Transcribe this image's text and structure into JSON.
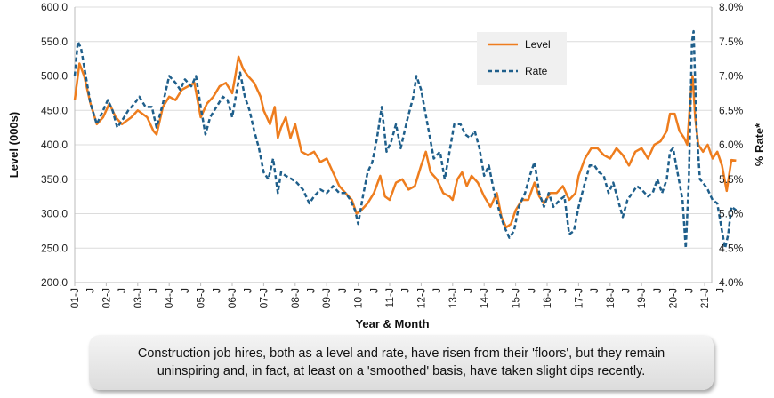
{
  "chart_data": {
    "type": "line",
    "xlabel": "Year & Month",
    "ylabel_left": "Level (000s)",
    "ylabel_right": "% Rate*",
    "ylim_left": [
      200,
      600
    ],
    "ylim_right": [
      4.0,
      8.0
    ],
    "yticks_left": [
      "200.0",
      "250.0",
      "300.0",
      "350.0",
      "400.0",
      "450.0",
      "500.0",
      "550.0",
      "600.0"
    ],
    "yticks_right": [
      "4.0%",
      "4.5%",
      "5.0%",
      "5.5%",
      "6.0%",
      "6.5%",
      "7.0%",
      "7.5%",
      "8.0%"
    ],
    "x_tick_labels": [
      "01-J",
      "02-J",
      "03-J",
      "04-J",
      "05-J",
      "06-J",
      "07-J",
      "08-J",
      "09-J",
      "10-J",
      "11-J",
      "12-J",
      "13-J",
      "14-J",
      "15-J",
      "16-J",
      "17-J",
      "18-J",
      "19-J",
      "20-J",
      "21-J"
    ],
    "x_tick_mid_label": "J",
    "x_start": 2001.0,
    "legend": {
      "position": "top-right",
      "entries": [
        "Level",
        "Rate"
      ]
    },
    "series": [
      {
        "name": "Level",
        "axis": "left",
        "color": "#ee7d1e",
        "style": "solid",
        "points": [
          [
            2001.0,
            465
          ],
          [
            2001.15,
            518
          ],
          [
            2001.3,
            500
          ],
          [
            2001.5,
            460
          ],
          [
            2001.7,
            430
          ],
          [
            2001.9,
            440
          ],
          [
            2002.1,
            460
          ],
          [
            2002.3,
            440
          ],
          [
            2002.5,
            430
          ],
          [
            2002.8,
            440
          ],
          [
            2003.0,
            450
          ],
          [
            2003.3,
            440
          ],
          [
            2003.5,
            420
          ],
          [
            2003.6,
            415
          ],
          [
            2003.8,
            455
          ],
          [
            2004.0,
            470
          ],
          [
            2004.2,
            465
          ],
          [
            2004.4,
            480
          ],
          [
            2004.6,
            485
          ],
          [
            2004.8,
            490
          ],
          [
            2005.0,
            440
          ],
          [
            2005.2,
            460
          ],
          [
            2005.4,
            470
          ],
          [
            2005.6,
            485
          ],
          [
            2005.8,
            490
          ],
          [
            2006.0,
            475
          ],
          [
            2006.1,
            500
          ],
          [
            2006.2,
            528
          ],
          [
            2006.35,
            510
          ],
          [
            2006.5,
            500
          ],
          [
            2006.7,
            490
          ],
          [
            2006.9,
            470
          ],
          [
            2007.0,
            450
          ],
          [
            2007.2,
            430
          ],
          [
            2007.35,
            455
          ],
          [
            2007.45,
            410
          ],
          [
            2007.55,
            425
          ],
          [
            2007.7,
            440
          ],
          [
            2007.85,
            410
          ],
          [
            2008.0,
            430
          ],
          [
            2008.2,
            390
          ],
          [
            2008.4,
            385
          ],
          [
            2008.6,
            390
          ],
          [
            2008.8,
            375
          ],
          [
            2009.0,
            380
          ],
          [
            2009.2,
            360
          ],
          [
            2009.4,
            340
          ],
          [
            2009.6,
            330
          ],
          [
            2009.8,
            320
          ],
          [
            2009.95,
            300
          ],
          [
            2010.1,
            305
          ],
          [
            2010.3,
            315
          ],
          [
            2010.5,
            330
          ],
          [
            2010.7,
            355
          ],
          [
            2010.85,
            325
          ],
          [
            2011.0,
            320
          ],
          [
            2011.2,
            345
          ],
          [
            2011.4,
            350
          ],
          [
            2011.6,
            335
          ],
          [
            2011.8,
            340
          ],
          [
            2012.0,
            370
          ],
          [
            2012.15,
            390
          ],
          [
            2012.3,
            360
          ],
          [
            2012.5,
            350
          ],
          [
            2012.7,
            330
          ],
          [
            2012.9,
            325
          ],
          [
            2013.0,
            320
          ],
          [
            2013.15,
            350
          ],
          [
            2013.3,
            360
          ],
          [
            2013.45,
            340
          ],
          [
            2013.6,
            355
          ],
          [
            2013.8,
            345
          ],
          [
            2014.0,
            325
          ],
          [
            2014.2,
            310
          ],
          [
            2014.4,
            330
          ],
          [
            2014.55,
            295
          ],
          [
            2014.7,
            280
          ],
          [
            2014.85,
            285
          ],
          [
            2015.0,
            305
          ],
          [
            2015.2,
            320
          ],
          [
            2015.4,
            320
          ],
          [
            2015.6,
            345
          ],
          [
            2015.75,
            325
          ],
          [
            2015.9,
            315
          ],
          [
            2016.1,
            330
          ],
          [
            2016.3,
            330
          ],
          [
            2016.5,
            340
          ],
          [
            2016.7,
            320
          ],
          [
            2016.9,
            330
          ],
          [
            2017.0,
            355
          ],
          [
            2017.2,
            380
          ],
          [
            2017.4,
            395
          ],
          [
            2017.6,
            395
          ],
          [
            2017.8,
            385
          ],
          [
            2018.0,
            380
          ],
          [
            2018.2,
            395
          ],
          [
            2018.4,
            385
          ],
          [
            2018.6,
            370
          ],
          [
            2018.8,
            390
          ],
          [
            2019.0,
            395
          ],
          [
            2019.2,
            380
          ],
          [
            2019.4,
            400
          ],
          [
            2019.6,
            405
          ],
          [
            2019.8,
            420
          ],
          [
            2019.9,
            445
          ],
          [
            2020.05,
            445
          ],
          [
            2020.2,
            420
          ],
          [
            2020.35,
            410
          ],
          [
            2020.45,
            400
          ],
          [
            2020.55,
            470
          ],
          [
            2020.62,
            500
          ],
          [
            2020.7,
            440
          ],
          [
            2020.8,
            400
          ],
          [
            2020.95,
            390
          ],
          [
            2021.1,
            400
          ],
          [
            2021.25,
            380
          ],
          [
            2021.4,
            390
          ],
          [
            2021.55,
            370
          ],
          [
            2021.7,
            333
          ],
          [
            2021.85,
            378
          ],
          [
            2022.0,
            377
          ]
        ]
      },
      {
        "name": "Rate",
        "axis": "right",
        "color": "#1f5f8b",
        "style": "dashed",
        "points": [
          [
            2001.0,
            7.0
          ],
          [
            2001.1,
            7.5
          ],
          [
            2001.2,
            7.4
          ],
          [
            2001.35,
            7.0
          ],
          [
            2001.5,
            6.6
          ],
          [
            2001.7,
            6.3
          ],
          [
            2001.9,
            6.5
          ],
          [
            2002.05,
            6.65
          ],
          [
            2002.2,
            6.5
          ],
          [
            2002.35,
            6.25
          ],
          [
            2002.5,
            6.35
          ],
          [
            2002.7,
            6.5
          ],
          [
            2002.9,
            6.6
          ],
          [
            2003.05,
            6.7
          ],
          [
            2003.25,
            6.55
          ],
          [
            2003.45,
            6.55
          ],
          [
            2003.6,
            6.25
          ],
          [
            2003.8,
            6.6
          ],
          [
            2004.0,
            7.0
          ],
          [
            2004.2,
            6.9
          ],
          [
            2004.35,
            6.8
          ],
          [
            2004.5,
            6.95
          ],
          [
            2004.7,
            6.85
          ],
          [
            2004.85,
            7.0
          ],
          [
            2005.0,
            6.55
          ],
          [
            2005.15,
            6.15
          ],
          [
            2005.3,
            6.4
          ],
          [
            2005.5,
            6.55
          ],
          [
            2005.7,
            6.7
          ],
          [
            2005.85,
            6.65
          ],
          [
            2006.0,
            6.4
          ],
          [
            2006.15,
            6.8
          ],
          [
            2006.25,
            7.05
          ],
          [
            2006.4,
            6.7
          ],
          [
            2006.55,
            6.5
          ],
          [
            2006.7,
            6.2
          ],
          [
            2006.85,
            5.95
          ],
          [
            2007.0,
            5.6
          ],
          [
            2007.15,
            5.5
          ],
          [
            2007.3,
            5.8
          ],
          [
            2007.45,
            5.3
          ],
          [
            2007.55,
            5.6
          ],
          [
            2007.7,
            5.55
          ],
          [
            2007.9,
            5.5
          ],
          [
            2008.05,
            5.45
          ],
          [
            2008.25,
            5.35
          ],
          [
            2008.45,
            5.15
          ],
          [
            2008.6,
            5.25
          ],
          [
            2008.8,
            5.35
          ],
          [
            2009.0,
            5.3
          ],
          [
            2009.2,
            5.4
          ],
          [
            2009.4,
            5.3
          ],
          [
            2009.6,
            5.3
          ],
          [
            2009.75,
            5.2
          ],
          [
            2009.9,
            5.05
          ],
          [
            2010.0,
            4.85
          ],
          [
            2010.15,
            5.25
          ],
          [
            2010.3,
            5.6
          ],
          [
            2010.45,
            5.75
          ],
          [
            2010.6,
            6.1
          ],
          [
            2010.75,
            6.55
          ],
          [
            2010.9,
            5.9
          ],
          [
            2011.05,
            6.05
          ],
          [
            2011.2,
            6.3
          ],
          [
            2011.35,
            5.95
          ],
          [
            2011.55,
            6.35
          ],
          [
            2011.75,
            6.7
          ],
          [
            2011.85,
            7.0
          ],
          [
            2012.0,
            6.8
          ],
          [
            2012.2,
            6.3
          ],
          [
            2012.4,
            5.8
          ],
          [
            2012.6,
            5.9
          ],
          [
            2012.75,
            5.5
          ],
          [
            2012.9,
            5.9
          ],
          [
            2013.05,
            6.3
          ],
          [
            2013.25,
            6.3
          ],
          [
            2013.4,
            6.15
          ],
          [
            2013.55,
            6.1
          ],
          [
            2013.7,
            6.2
          ],
          [
            2013.85,
            5.95
          ],
          [
            2014.0,
            5.55
          ],
          [
            2014.15,
            5.7
          ],
          [
            2014.3,
            5.35
          ],
          [
            2014.5,
            5.0
          ],
          [
            2014.65,
            4.8
          ],
          [
            2014.8,
            4.65
          ],
          [
            2014.95,
            4.75
          ],
          [
            2015.1,
            5.1
          ],
          [
            2015.3,
            5.3
          ],
          [
            2015.45,
            5.55
          ],
          [
            2015.6,
            5.75
          ],
          [
            2015.75,
            5.3
          ],
          [
            2015.9,
            5.1
          ],
          [
            2016.05,
            5.3
          ],
          [
            2016.2,
            5.1
          ],
          [
            2016.4,
            5.2
          ],
          [
            2016.55,
            5.25
          ],
          [
            2016.7,
            4.7
          ],
          [
            2016.85,
            4.75
          ],
          [
            2017.0,
            5.1
          ],
          [
            2017.2,
            5.45
          ],
          [
            2017.35,
            5.7
          ],
          [
            2017.5,
            5.7
          ],
          [
            2017.65,
            5.6
          ],
          [
            2017.8,
            5.55
          ],
          [
            2017.95,
            5.3
          ],
          [
            2018.1,
            5.45
          ],
          [
            2018.25,
            5.2
          ],
          [
            2018.4,
            4.95
          ],
          [
            2018.55,
            5.2
          ],
          [
            2018.7,
            5.3
          ],
          [
            2018.85,
            5.4
          ],
          [
            2019.0,
            5.35
          ],
          [
            2019.2,
            5.25
          ],
          [
            2019.35,
            5.3
          ],
          [
            2019.5,
            5.5
          ],
          [
            2019.65,
            5.3
          ],
          [
            2019.8,
            5.5
          ],
          [
            2019.9,
            5.9
          ],
          [
            2020.0,
            5.95
          ],
          [
            2020.1,
            5.7
          ],
          [
            2020.2,
            5.45
          ],
          [
            2020.3,
            5.2
          ],
          [
            2020.4,
            4.5
          ],
          [
            2020.5,
            5.5
          ],
          [
            2020.6,
            7.5
          ],
          [
            2020.65,
            7.65
          ],
          [
            2020.75,
            6.2
          ],
          [
            2020.85,
            5.5
          ],
          [
            2020.95,
            5.45
          ],
          [
            2021.1,
            5.35
          ],
          [
            2021.25,
            5.2
          ],
          [
            2021.4,
            5.15
          ],
          [
            2021.55,
            4.75
          ],
          [
            2021.65,
            4.5
          ],
          [
            2021.75,
            4.7
          ],
          [
            2021.85,
            5.1
          ],
          [
            2022.0,
            5.05
          ]
        ]
      }
    ]
  },
  "caption": {
    "text": "Construction job hires, both as a level and rate, have risen from their 'floors', but they remain uninspiring and, in fact, at least on a 'smoothed' basis, have taken slight dips recently."
  }
}
